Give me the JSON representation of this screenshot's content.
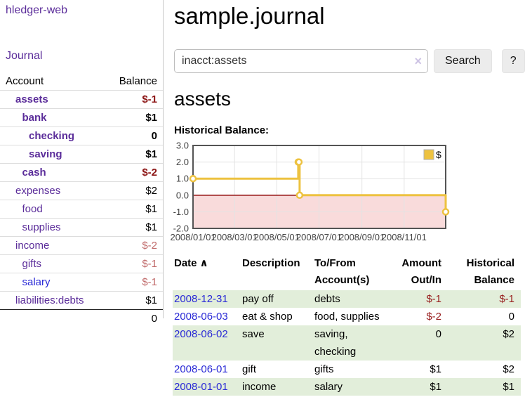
{
  "app": {
    "title": "hledger-web",
    "nav_journal": "Journal"
  },
  "sidebar": {
    "header": {
      "account": "Account",
      "balance": "Balance"
    },
    "accounts": [
      {
        "name": "assets",
        "depth": 0,
        "balance": "$-1",
        "bold": true,
        "negative": true,
        "blue": false
      },
      {
        "name": "bank",
        "depth": 1,
        "balance": "$1",
        "bold": true,
        "negative": false,
        "blue": false
      },
      {
        "name": "checking",
        "depth": 2,
        "balance": "0",
        "bold": true,
        "negative": false,
        "blue": false
      },
      {
        "name": "saving",
        "depth": 2,
        "balance": "$1",
        "bold": true,
        "negative": false,
        "blue": false
      },
      {
        "name": "cash",
        "depth": 1,
        "balance": "$-2",
        "bold": true,
        "negative": true,
        "blue": false
      },
      {
        "name": "expenses",
        "depth": 0,
        "balance": "$2",
        "bold": false,
        "negative": false,
        "blue": false
      },
      {
        "name": "food",
        "depth": 1,
        "balance": "$1",
        "bold": false,
        "negative": false,
        "blue": false
      },
      {
        "name": "supplies",
        "depth": 1,
        "balance": "$1",
        "bold": false,
        "negative": false,
        "blue": false
      },
      {
        "name": "income",
        "depth": 0,
        "balance": "$-2",
        "bold": false,
        "negative": true,
        "blue": false
      },
      {
        "name": "gifts",
        "depth": 1,
        "balance": "$-1",
        "bold": false,
        "negative": true,
        "blue": false
      },
      {
        "name": "salary",
        "depth": 1,
        "balance": "$-1",
        "bold": false,
        "negative": true,
        "blue": true
      },
      {
        "name": "liabilities:debts",
        "depth": 0,
        "balance": "$1",
        "bold": false,
        "negative": false,
        "blue": false
      }
    ],
    "total": "0"
  },
  "header": {
    "journal_title": "sample.journal"
  },
  "search": {
    "value": "inacct:assets",
    "clear_icon": "×",
    "button_label": "Search",
    "help_label": "?"
  },
  "account_page": {
    "title": "assets",
    "chart_label": "Historical Balance:"
  },
  "chart_data": {
    "type": "line",
    "step": true,
    "series": [
      {
        "name": "$",
        "color": "#edc240",
        "points": [
          [
            "2008-01-01",
            1
          ],
          [
            "2008-06-01",
            2
          ],
          [
            "2008-06-02",
            2
          ],
          [
            "2008-06-03",
            0
          ],
          [
            "2008-12-31",
            -1
          ]
        ]
      }
    ],
    "x_range": [
      "2008-01-01",
      "2008-12-31"
    ],
    "x_ticks": [
      {
        "date": "2008-01-01",
        "label": "2008/01/01"
      },
      {
        "date": "2008-03-01",
        "label": "2008/03/01"
      },
      {
        "date": "2008-05-01",
        "label": "2008/05/01"
      },
      {
        "date": "2008-07-01",
        "label": "2008/07/01"
      },
      {
        "date": "2008-09-01",
        "label": "2008/09/01"
      },
      {
        "date": "2008-11-01",
        "label": "2008/11/01"
      }
    ],
    "y_ticks": [
      "3.0",
      "2.0",
      "1.0",
      "0.0",
      "-1.0",
      "-2.0"
    ],
    "ylim": [
      -2,
      3
    ],
    "grid": true,
    "legend": {
      "label": "$",
      "position": "top-right"
    },
    "colors": {
      "series": "#edc240",
      "marker_fill": "#ffffff",
      "negative_region": "#f9dbdb",
      "zero_line": "#8b0000",
      "grid": "#e3e3e3",
      "border": "#545454",
      "axis_label": "#444444"
    }
  },
  "register_table": {
    "sort_icon": "∧",
    "headers": [
      {
        "label": "Date",
        "sorted": true,
        "align": "left"
      },
      {
        "label": "Description",
        "align": "left"
      },
      {
        "label": "To/From\nAccount(s)",
        "align": "left"
      },
      {
        "label": "Amount\nOut/In",
        "align": "right"
      },
      {
        "label": "Historical\nBalance",
        "align": "right"
      }
    ],
    "rows": [
      {
        "date": "2008-12-31",
        "description": "pay off",
        "accounts": "debts",
        "amount": "$-1",
        "amount_negative": true,
        "balance": "$-1",
        "balance_negative": true
      },
      {
        "date": "2008-06-03",
        "description": "eat & shop",
        "accounts": "food, supplies",
        "amount": "$-2",
        "amount_negative": true,
        "balance": "0",
        "balance_negative": false
      },
      {
        "date": "2008-06-02",
        "description": "save",
        "accounts": "saving,\nchecking",
        "amount": "0",
        "amount_negative": false,
        "balance": "$2",
        "balance_negative": false
      },
      {
        "date": "2008-06-01",
        "description": "gift",
        "accounts": "gifts",
        "amount": "$1",
        "amount_negative": false,
        "balance": "$2",
        "balance_negative": false
      },
      {
        "date": "2008-01-01",
        "description": "income",
        "accounts": "salary",
        "amount": "$1",
        "amount_negative": false,
        "balance": "$1",
        "balance_negative": false
      }
    ]
  },
  "colors": {
    "link_purple": "#5b2d9a",
    "link_blue": "#2929d6",
    "negative_dark_red": "#8c1515",
    "negative_light_red": "#c06a6a",
    "negative_table_red": "#971c1c",
    "row_green": "#e2eeda",
    "chart_gold": "#edc240",
    "chart_pink": "#f9dbdb"
  }
}
